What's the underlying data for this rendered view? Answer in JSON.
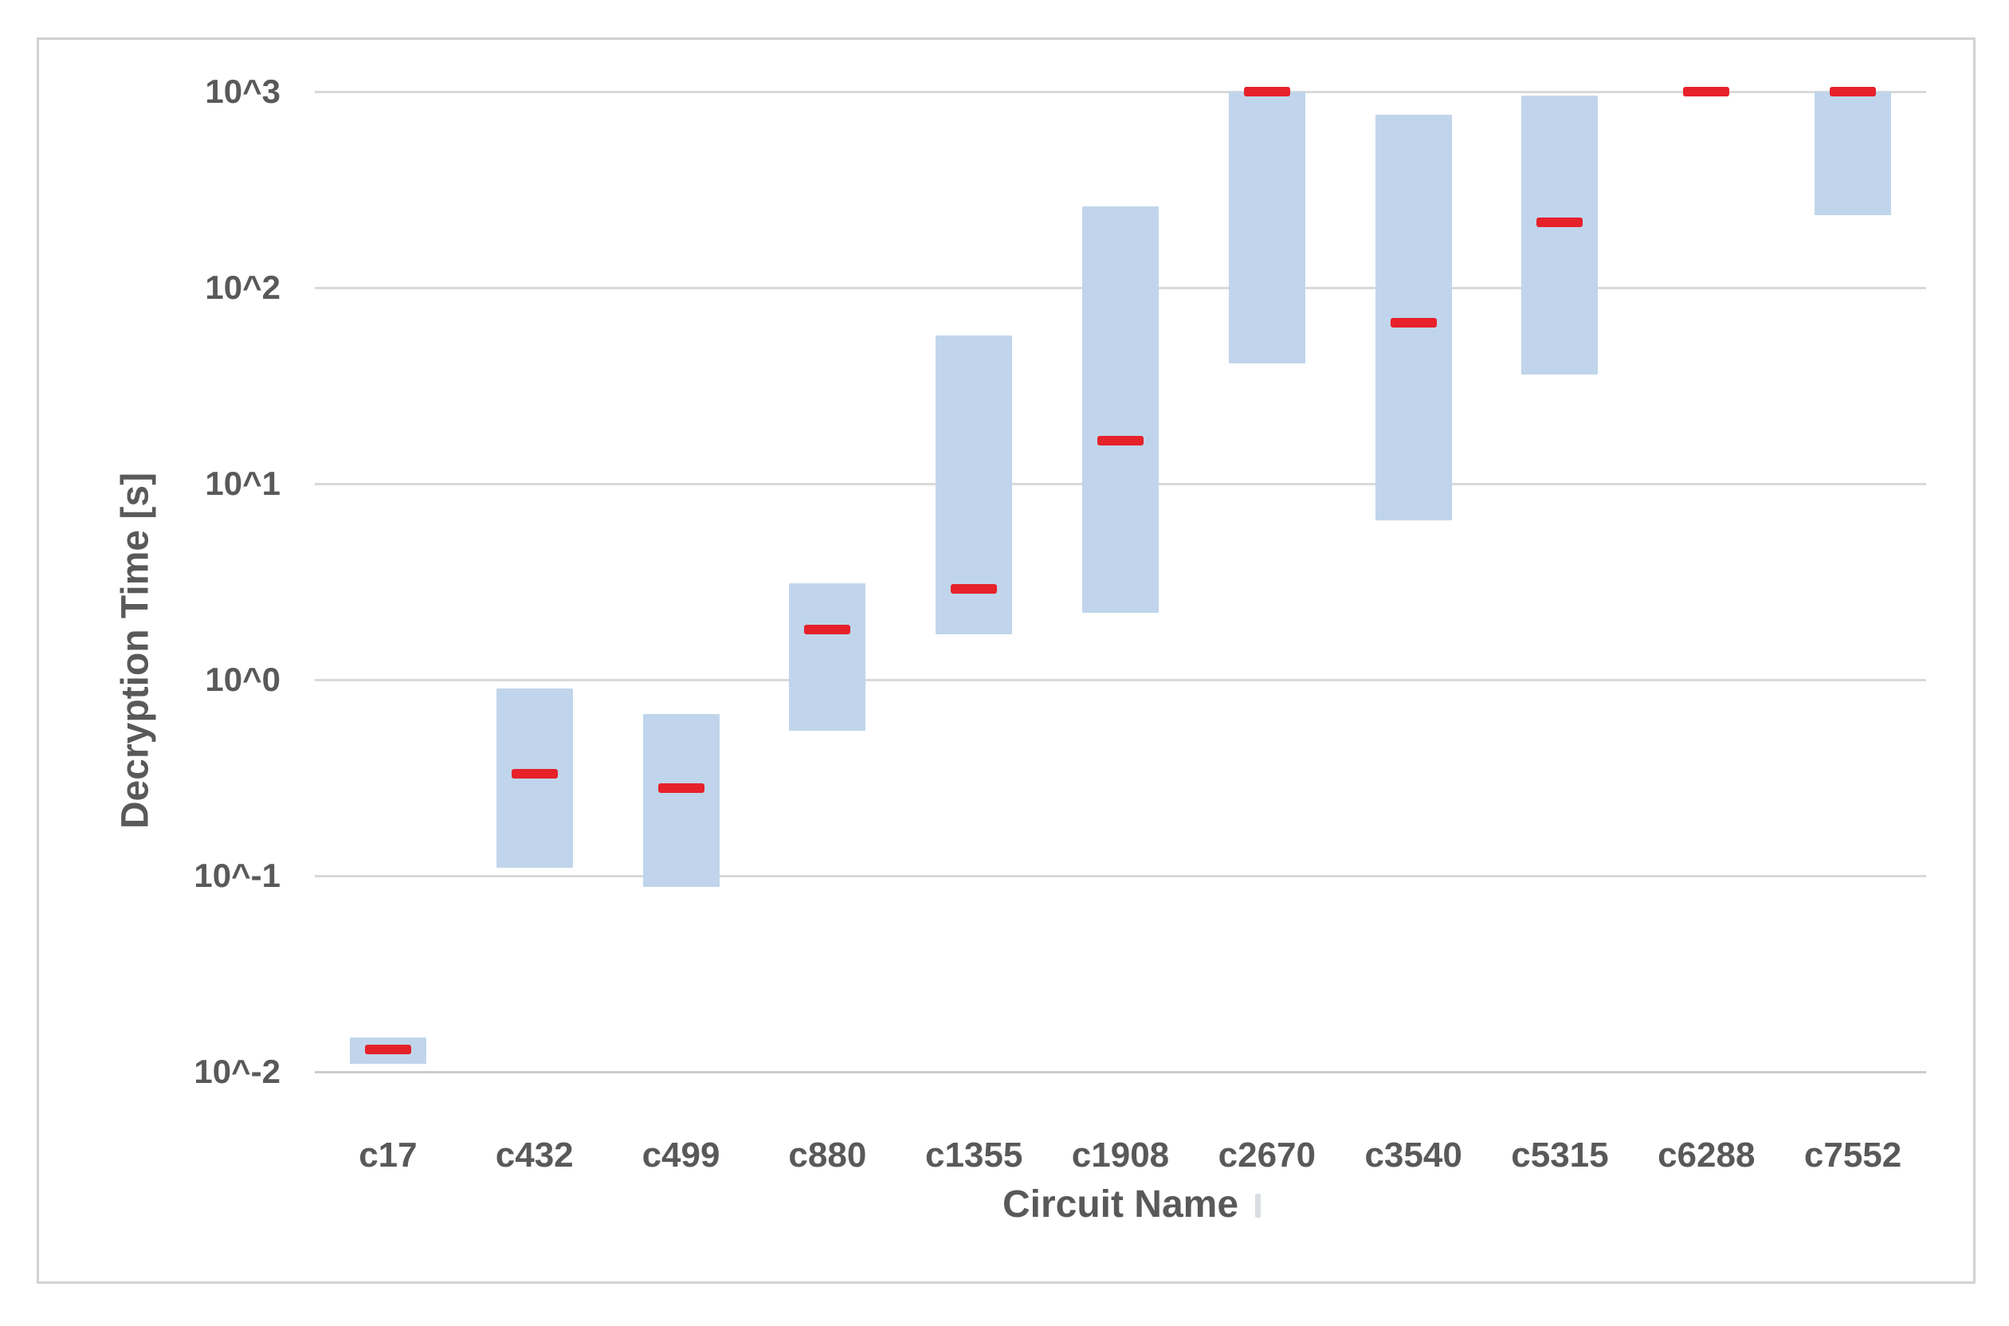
{
  "figure": {
    "kind": "log-scale floating bar chart of decryption time ranges per benchmark circuit",
    "x_axis_title": "Circuit Name",
    "y_axis_title": "Decryption Time [s]"
  },
  "chart_data": {
    "type": "bar",
    "subtype": "floating-range-bars-with-median-markers",
    "title": "",
    "xlabel": "Circuit Name",
    "ylabel": "Decryption Time [s]",
    "categories": [
      "c17",
      "c432",
      "c499",
      "c880",
      "c1355",
      "c1908",
      "c2670",
      "c3540",
      "c5315",
      "c6288",
      "c7552"
    ],
    "series": [
      {
        "name": "decryption-time-range",
        "type": "floating-bar",
        "low": [
          0.011,
          0.11,
          0.088,
          0.55,
          1.7,
          2.2,
          41,
          6.5,
          36,
          1000,
          235
        ],
        "high": [
          0.015,
          0.9,
          0.67,
          3.1,
          57,
          260,
          1000,
          760,
          950,
          1000,
          1000
        ]
      },
      {
        "name": "median-marker",
        "type": "dash-marker",
        "values": [
          0.013,
          0.33,
          0.28,
          1.8,
          2.9,
          16.5,
          1000,
          66,
          215,
          1000,
          1000
        ]
      }
    ],
    "yscale": "log",
    "ylim": [
      0.01,
      1000
    ],
    "yticks": {
      "labels": [
        "10^3",
        "10^2",
        "10^1",
        "10^0",
        "10^-1",
        "10^-2"
      ],
      "values": [
        1000,
        100,
        10,
        1,
        0.1,
        0.01
      ]
    },
    "grid": "horizontal",
    "legend": "none",
    "colors": {
      "bar_fill": "#c0d5eb",
      "marker": "#e6212a",
      "gridline": "#d9d9d9",
      "axis_text": "#595959",
      "frame_border": "#d2d2d2",
      "background": "#ffffff"
    }
  }
}
